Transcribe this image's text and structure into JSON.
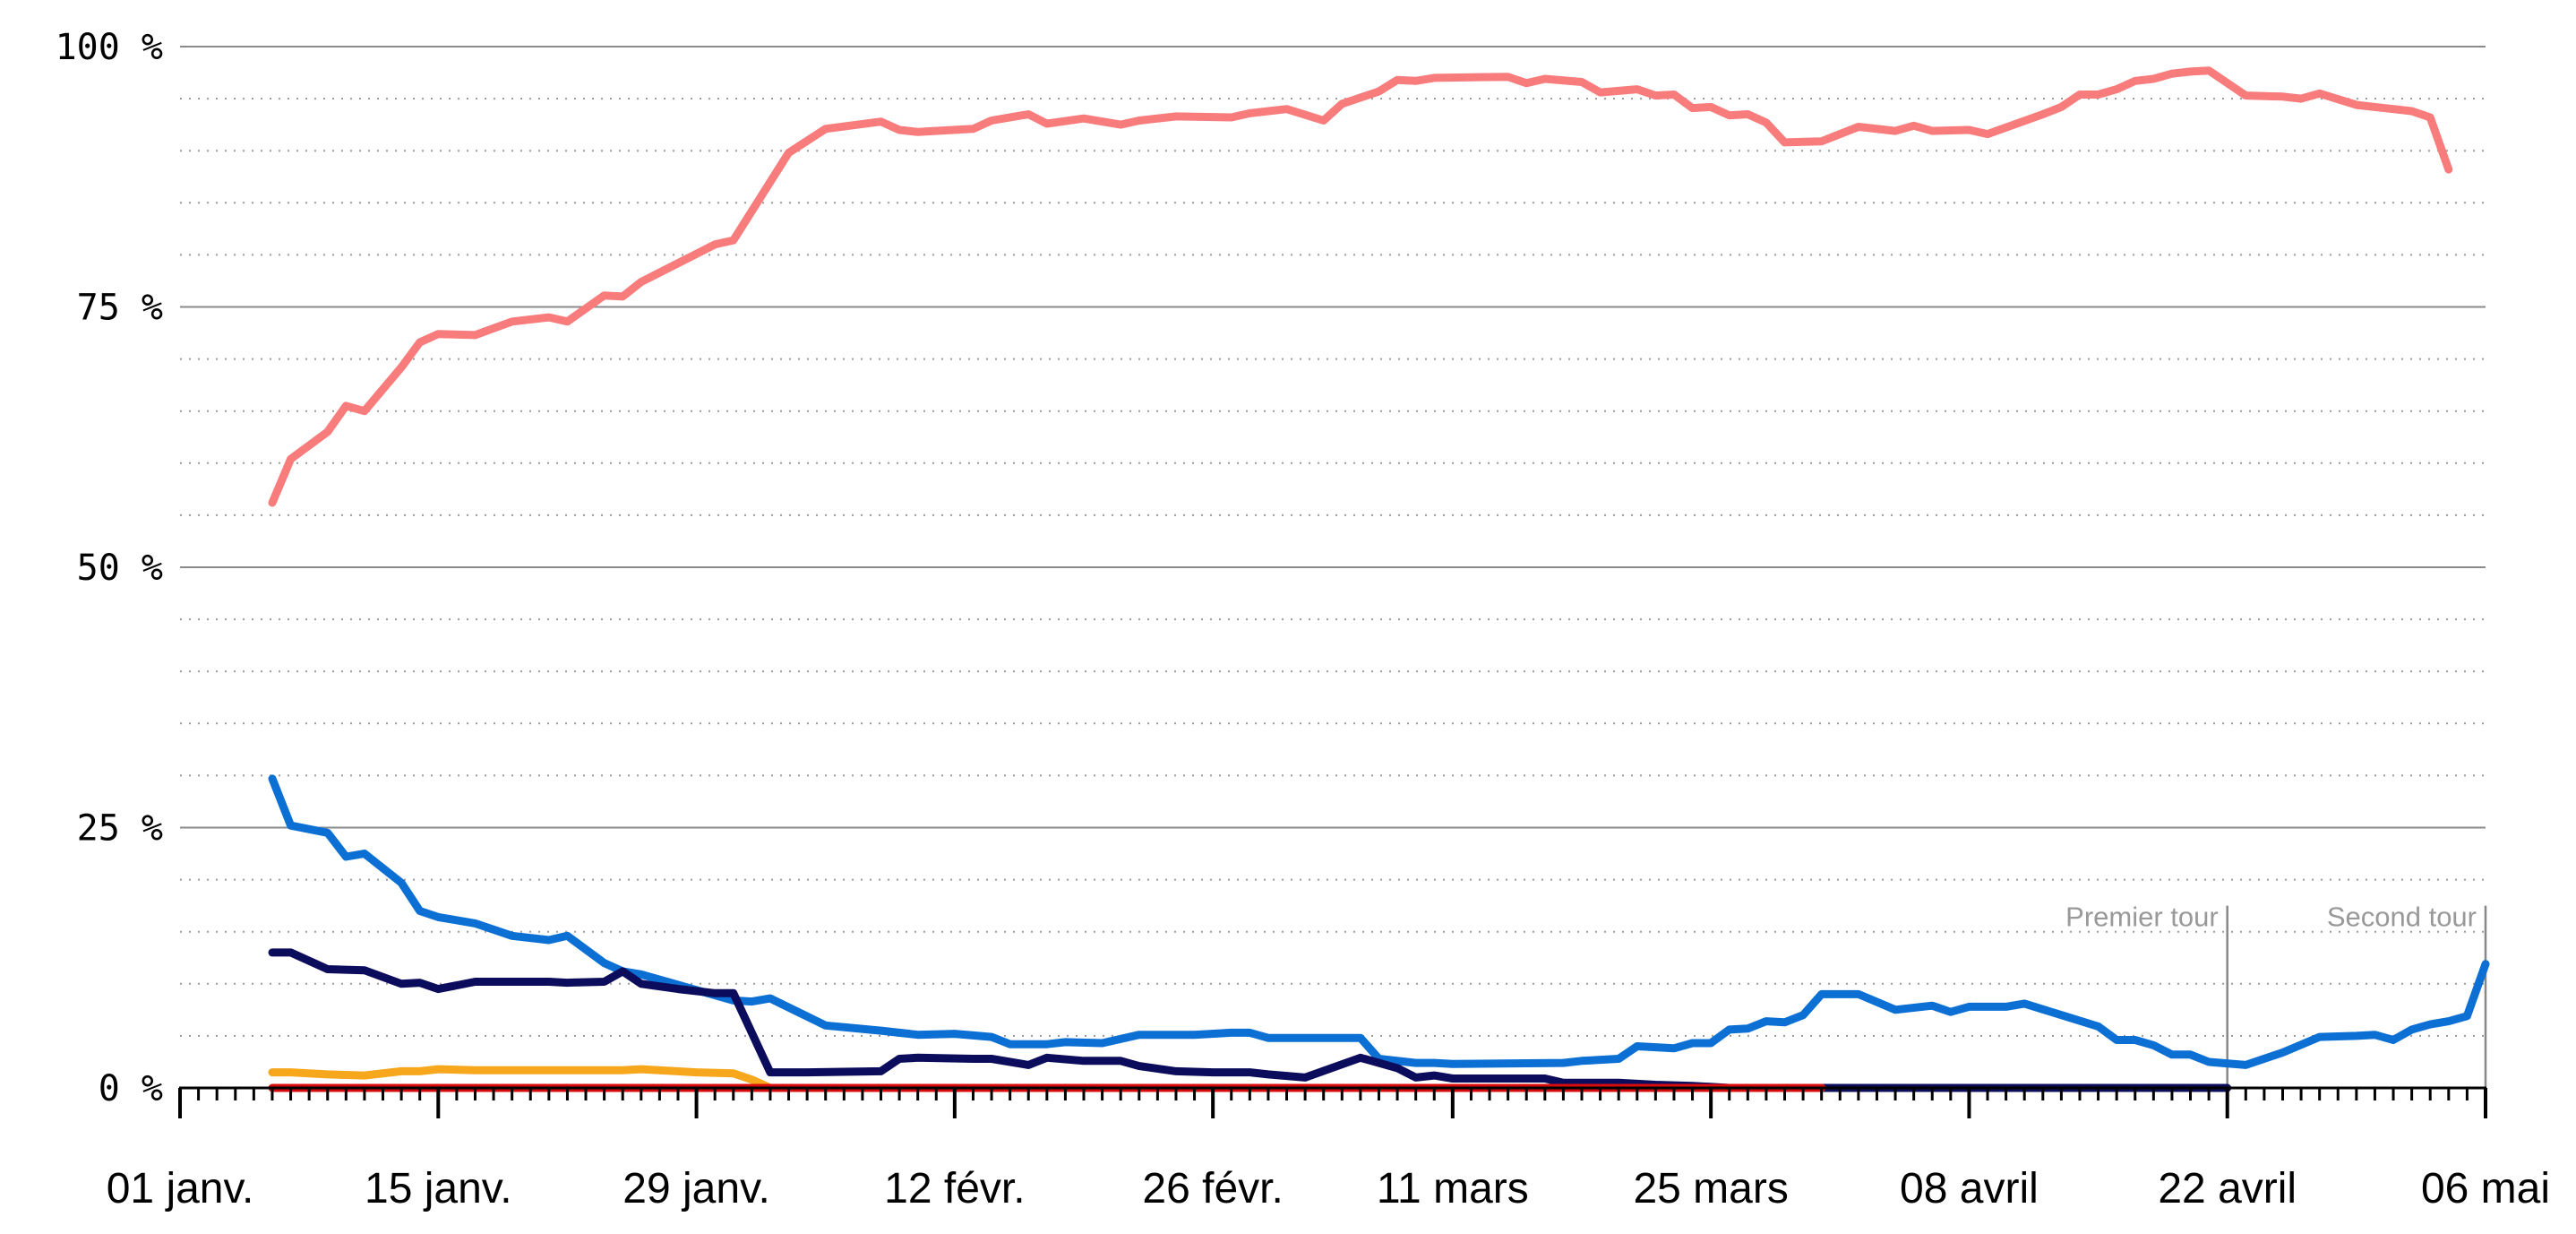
{
  "chart_data": {
    "type": "line",
    "x_type": "date",
    "y_unit": "%",
    "ylim": [
      0,
      100
    ],
    "y_ticks": [
      {
        "value": 0,
        "label": "0 %"
      },
      {
        "value": 25,
        "label": "25 %"
      },
      {
        "value": 50,
        "label": "50 %"
      },
      {
        "value": 75,
        "label": "75 %"
      },
      {
        "value": 100,
        "label": "100 %"
      }
    ],
    "x_ticks": [
      {
        "date": "2022-01-01",
        "label": "01 janv."
      },
      {
        "date": "2022-01-15",
        "label": "15 janv."
      },
      {
        "date": "2022-01-29",
        "label": "29 janv."
      },
      {
        "date": "2022-02-12",
        "label": "12 févr."
      },
      {
        "date": "2022-02-26",
        "label": "26 févr."
      },
      {
        "date": "2022-03-11",
        "label": "11 mars"
      },
      {
        "date": "2022-03-25",
        "label": "25 mars"
      },
      {
        "date": "2022-04-08",
        "label": "08 avril"
      },
      {
        "date": "2022-04-22",
        "label": "22 avril"
      },
      {
        "date": "2022-05-06",
        "label": "06 mai"
      }
    ],
    "xlim": [
      "2022-01-01",
      "2022-05-06"
    ],
    "grid": {
      "major_every": 25,
      "minor_every": 5
    },
    "annotations": [
      {
        "date": "2022-04-22",
        "label": "Premier tour",
        "y_top": 17.5
      },
      {
        "date": "2022-05-06",
        "label": "Second tour",
        "y_top": 17.5
      }
    ],
    "series": [
      {
        "color": "#f87c7c",
        "points": [
          [
            "2022-01-06",
            56.2
          ],
          [
            "2022-01-07",
            60.4
          ],
          [
            "2022-01-09",
            63.0
          ],
          [
            "2022-01-10",
            65.5
          ],
          [
            "2022-01-11",
            65.0
          ],
          [
            "2022-01-13",
            69.2
          ],
          [
            "2022-01-14",
            71.6
          ],
          [
            "2022-01-15",
            72.4
          ],
          [
            "2022-01-17",
            72.3
          ],
          [
            "2022-01-19",
            73.6
          ],
          [
            "2022-01-21",
            74.0
          ],
          [
            "2022-01-22",
            73.6
          ],
          [
            "2022-01-24",
            76.1
          ],
          [
            "2022-01-25",
            76.0
          ],
          [
            "2022-01-26",
            77.4
          ],
          [
            "2022-01-28",
            79.2
          ],
          [
            "2022-01-30",
            81.0
          ],
          [
            "2022-01-31",
            81.4
          ],
          [
            "2022-02-03",
            89.8
          ],
          [
            "2022-02-05",
            92.1
          ],
          [
            "2022-02-08",
            92.8
          ],
          [
            "2022-02-09",
            92.0
          ],
          [
            "2022-02-10",
            91.8
          ],
          [
            "2022-02-13",
            92.1
          ],
          [
            "2022-02-14",
            92.9
          ],
          [
            "2022-02-16",
            93.5
          ],
          [
            "2022-02-17",
            92.6
          ],
          [
            "2022-02-19",
            93.1
          ],
          [
            "2022-02-21",
            92.5
          ],
          [
            "2022-02-22",
            92.9
          ],
          [
            "2022-02-24",
            93.3
          ],
          [
            "2022-02-27",
            93.2
          ],
          [
            "2022-02-28",
            93.6
          ],
          [
            "2022-03-02",
            94.0
          ],
          [
            "2022-03-04",
            92.9
          ],
          [
            "2022-03-05",
            94.5
          ],
          [
            "2022-03-07",
            95.7
          ],
          [
            "2022-03-08",
            96.8
          ],
          [
            "2022-03-09",
            96.7
          ],
          [
            "2022-03-10",
            97.0
          ],
          [
            "2022-03-14",
            97.1
          ],
          [
            "2022-03-15",
            96.5
          ],
          [
            "2022-03-16",
            96.9
          ],
          [
            "2022-03-18",
            96.6
          ],
          [
            "2022-03-19",
            95.6
          ],
          [
            "2022-03-21",
            95.9
          ],
          [
            "2022-03-22",
            95.3
          ],
          [
            "2022-03-23",
            95.4
          ],
          [
            "2022-03-24",
            94.1
          ],
          [
            "2022-03-25",
            94.2
          ],
          [
            "2022-03-26",
            93.4
          ],
          [
            "2022-03-27",
            93.5
          ],
          [
            "2022-03-28",
            92.7
          ],
          [
            "2022-03-29",
            90.8
          ],
          [
            "2022-03-31",
            90.9
          ],
          [
            "2022-04-02",
            92.3
          ],
          [
            "2022-04-04",
            91.9
          ],
          [
            "2022-04-05",
            92.4
          ],
          [
            "2022-04-06",
            91.9
          ],
          [
            "2022-04-08",
            92.0
          ],
          [
            "2022-04-09",
            91.6
          ],
          [
            "2022-04-12",
            93.5
          ],
          [
            "2022-04-13",
            94.2
          ],
          [
            "2022-04-14",
            95.4
          ],
          [
            "2022-04-15",
            95.4
          ],
          [
            "2022-04-16",
            95.9
          ],
          [
            "2022-04-17",
            96.7
          ],
          [
            "2022-04-18",
            96.9
          ],
          [
            "2022-04-19",
            97.4
          ],
          [
            "2022-04-20",
            97.6
          ],
          [
            "2022-04-21",
            97.7
          ],
          [
            "2022-04-23",
            95.3
          ],
          [
            "2022-04-25",
            95.2
          ],
          [
            "2022-04-26",
            95.0
          ],
          [
            "2022-04-27",
            95.5
          ],
          [
            "2022-04-29",
            94.4
          ],
          [
            "2022-05-02",
            93.8
          ],
          [
            "2022-05-03",
            93.2
          ],
          [
            "2022-05-04",
            88.2
          ]
        ]
      },
      {
        "color": "#0b6fd4",
        "points": [
          [
            "2022-01-06",
            29.7
          ],
          [
            "2022-01-07",
            25.2
          ],
          [
            "2022-01-09",
            24.5
          ],
          [
            "2022-01-10",
            22.2
          ],
          [
            "2022-01-11",
            22.5
          ],
          [
            "2022-01-13",
            19.7
          ],
          [
            "2022-01-14",
            17.0
          ],
          [
            "2022-01-15",
            16.4
          ],
          [
            "2022-01-17",
            15.8
          ],
          [
            "2022-01-19",
            14.6
          ],
          [
            "2022-01-21",
            14.2
          ],
          [
            "2022-01-22",
            14.6
          ],
          [
            "2022-01-24",
            12.0
          ],
          [
            "2022-01-25",
            11.2
          ],
          [
            "2022-01-26",
            10.9
          ],
          [
            "2022-01-28",
            9.9
          ],
          [
            "2022-01-30",
            8.9
          ],
          [
            "2022-01-31",
            8.4
          ],
          [
            "2022-02-01",
            8.3
          ],
          [
            "2022-02-02",
            8.6
          ],
          [
            "2022-02-05",
            6.0
          ],
          [
            "2022-02-08",
            5.5
          ],
          [
            "2022-02-10",
            5.1
          ],
          [
            "2022-02-12",
            5.2
          ],
          [
            "2022-02-14",
            4.9
          ],
          [
            "2022-02-15",
            4.2
          ],
          [
            "2022-02-17",
            4.2
          ],
          [
            "2022-02-18",
            4.4
          ],
          [
            "2022-02-20",
            4.3
          ],
          [
            "2022-02-22",
            5.1
          ],
          [
            "2022-02-25",
            5.1
          ],
          [
            "2022-02-27",
            5.3
          ],
          [
            "2022-02-28",
            5.3
          ],
          [
            "2022-03-01",
            4.8
          ],
          [
            "2022-03-04",
            4.8
          ],
          [
            "2022-03-06",
            4.8
          ],
          [
            "2022-03-07",
            2.8
          ],
          [
            "2022-03-09",
            2.4
          ],
          [
            "2022-03-10",
            2.4
          ],
          [
            "2022-03-11",
            2.3
          ],
          [
            "2022-03-17",
            2.4
          ],
          [
            "2022-03-18",
            2.6
          ],
          [
            "2022-03-20",
            2.8
          ],
          [
            "2022-03-21",
            4.0
          ],
          [
            "2022-03-23",
            3.8
          ],
          [
            "2022-03-24",
            4.3
          ],
          [
            "2022-03-25",
            4.3
          ],
          [
            "2022-03-26",
            5.6
          ],
          [
            "2022-03-27",
            5.7
          ],
          [
            "2022-03-28",
            6.4
          ],
          [
            "2022-03-29",
            6.3
          ],
          [
            "2022-03-30",
            7.0
          ],
          [
            "2022-03-31",
            9.0
          ],
          [
            "2022-04-02",
            9.0
          ],
          [
            "2022-04-04",
            7.5
          ],
          [
            "2022-04-06",
            7.9
          ],
          [
            "2022-04-07",
            7.3
          ],
          [
            "2022-04-08",
            7.8
          ],
          [
            "2022-04-10",
            7.8
          ],
          [
            "2022-04-11",
            8.1
          ],
          [
            "2022-04-13",
            7.0
          ],
          [
            "2022-04-15",
            5.9
          ],
          [
            "2022-04-16",
            4.6
          ],
          [
            "2022-04-17",
            4.6
          ],
          [
            "2022-04-18",
            4.1
          ],
          [
            "2022-04-19",
            3.2
          ],
          [
            "2022-04-20",
            3.2
          ],
          [
            "2022-04-21",
            2.5
          ],
          [
            "2022-04-23",
            2.2
          ],
          [
            "2022-04-25",
            3.4
          ],
          [
            "2022-04-27",
            4.9
          ],
          [
            "2022-04-29",
            5.0
          ],
          [
            "2022-04-30",
            5.1
          ],
          [
            "2022-05-01",
            4.6
          ],
          [
            "2022-05-02",
            5.6
          ],
          [
            "2022-05-03",
            6.1
          ],
          [
            "2022-05-04",
            6.4
          ],
          [
            "2022-05-05",
            6.9
          ],
          [
            "2022-05-06",
            11.9
          ]
        ]
      },
      {
        "color": "#0c0c5c",
        "points": [
          [
            "2022-01-06",
            13.0
          ],
          [
            "2022-01-07",
            13.0
          ],
          [
            "2022-01-09",
            11.4
          ],
          [
            "2022-01-11",
            11.3
          ],
          [
            "2022-01-13",
            10.0
          ],
          [
            "2022-01-14",
            10.1
          ],
          [
            "2022-01-15",
            9.5
          ],
          [
            "2022-01-17",
            10.2
          ],
          [
            "2022-01-21",
            10.2
          ],
          [
            "2022-01-22",
            10.1
          ],
          [
            "2022-01-24",
            10.2
          ],
          [
            "2022-01-25",
            11.2
          ],
          [
            "2022-01-26",
            10.0
          ],
          [
            "2022-01-28",
            9.5
          ],
          [
            "2022-01-30",
            9.1
          ],
          [
            "2022-01-31",
            9.1
          ],
          [
            "2022-02-02",
            1.5
          ],
          [
            "2022-02-04",
            1.5
          ],
          [
            "2022-02-08",
            1.6
          ],
          [
            "2022-02-09",
            2.8
          ],
          [
            "2022-02-10",
            2.9
          ],
          [
            "2022-02-13",
            2.8
          ],
          [
            "2022-02-14",
            2.8
          ],
          [
            "2022-02-16",
            2.2
          ],
          [
            "2022-02-17",
            2.9
          ],
          [
            "2022-02-19",
            2.6
          ],
          [
            "2022-02-21",
            2.6
          ],
          [
            "2022-02-22",
            2.1
          ],
          [
            "2022-02-24",
            1.6
          ],
          [
            "2022-02-26",
            1.5
          ],
          [
            "2022-02-28",
            1.5
          ],
          [
            "2022-03-01",
            1.3
          ],
          [
            "2022-03-03",
            1.0
          ],
          [
            "2022-03-06",
            2.9
          ],
          [
            "2022-03-08",
            1.9
          ],
          [
            "2022-03-09",
            1.0
          ],
          [
            "2022-03-10",
            1.2
          ],
          [
            "2022-03-11",
            0.9
          ],
          [
            "2022-03-16",
            0.9
          ],
          [
            "2022-03-17",
            0.5
          ],
          [
            "2022-03-20",
            0.5
          ],
          [
            "2022-03-22",
            0.3
          ],
          [
            "2022-03-24",
            0.2
          ],
          [
            "2022-03-26",
            0.0
          ],
          [
            "2022-04-22",
            0.0
          ]
        ]
      },
      {
        "color": "#f6a71c",
        "points": [
          [
            "2022-01-06",
            1.5
          ],
          [
            "2022-01-07",
            1.5
          ],
          [
            "2022-01-09",
            1.3
          ],
          [
            "2022-01-11",
            1.2
          ],
          [
            "2022-01-13",
            1.6
          ],
          [
            "2022-01-14",
            1.6
          ],
          [
            "2022-01-15",
            1.8
          ],
          [
            "2022-01-17",
            1.7
          ],
          [
            "2022-01-25",
            1.7
          ],
          [
            "2022-01-26",
            1.8
          ],
          [
            "2022-01-29",
            1.5
          ],
          [
            "2022-01-31",
            1.4
          ],
          [
            "2022-02-01",
            0.8
          ],
          [
            "2022-02-02",
            0.0
          ],
          [
            "2022-03-31",
            0.0
          ]
        ]
      },
      {
        "color": "#d80c0c",
        "points": [
          [
            "2022-01-06",
            0.0
          ],
          [
            "2022-03-31",
            0.0
          ]
        ]
      }
    ]
  }
}
